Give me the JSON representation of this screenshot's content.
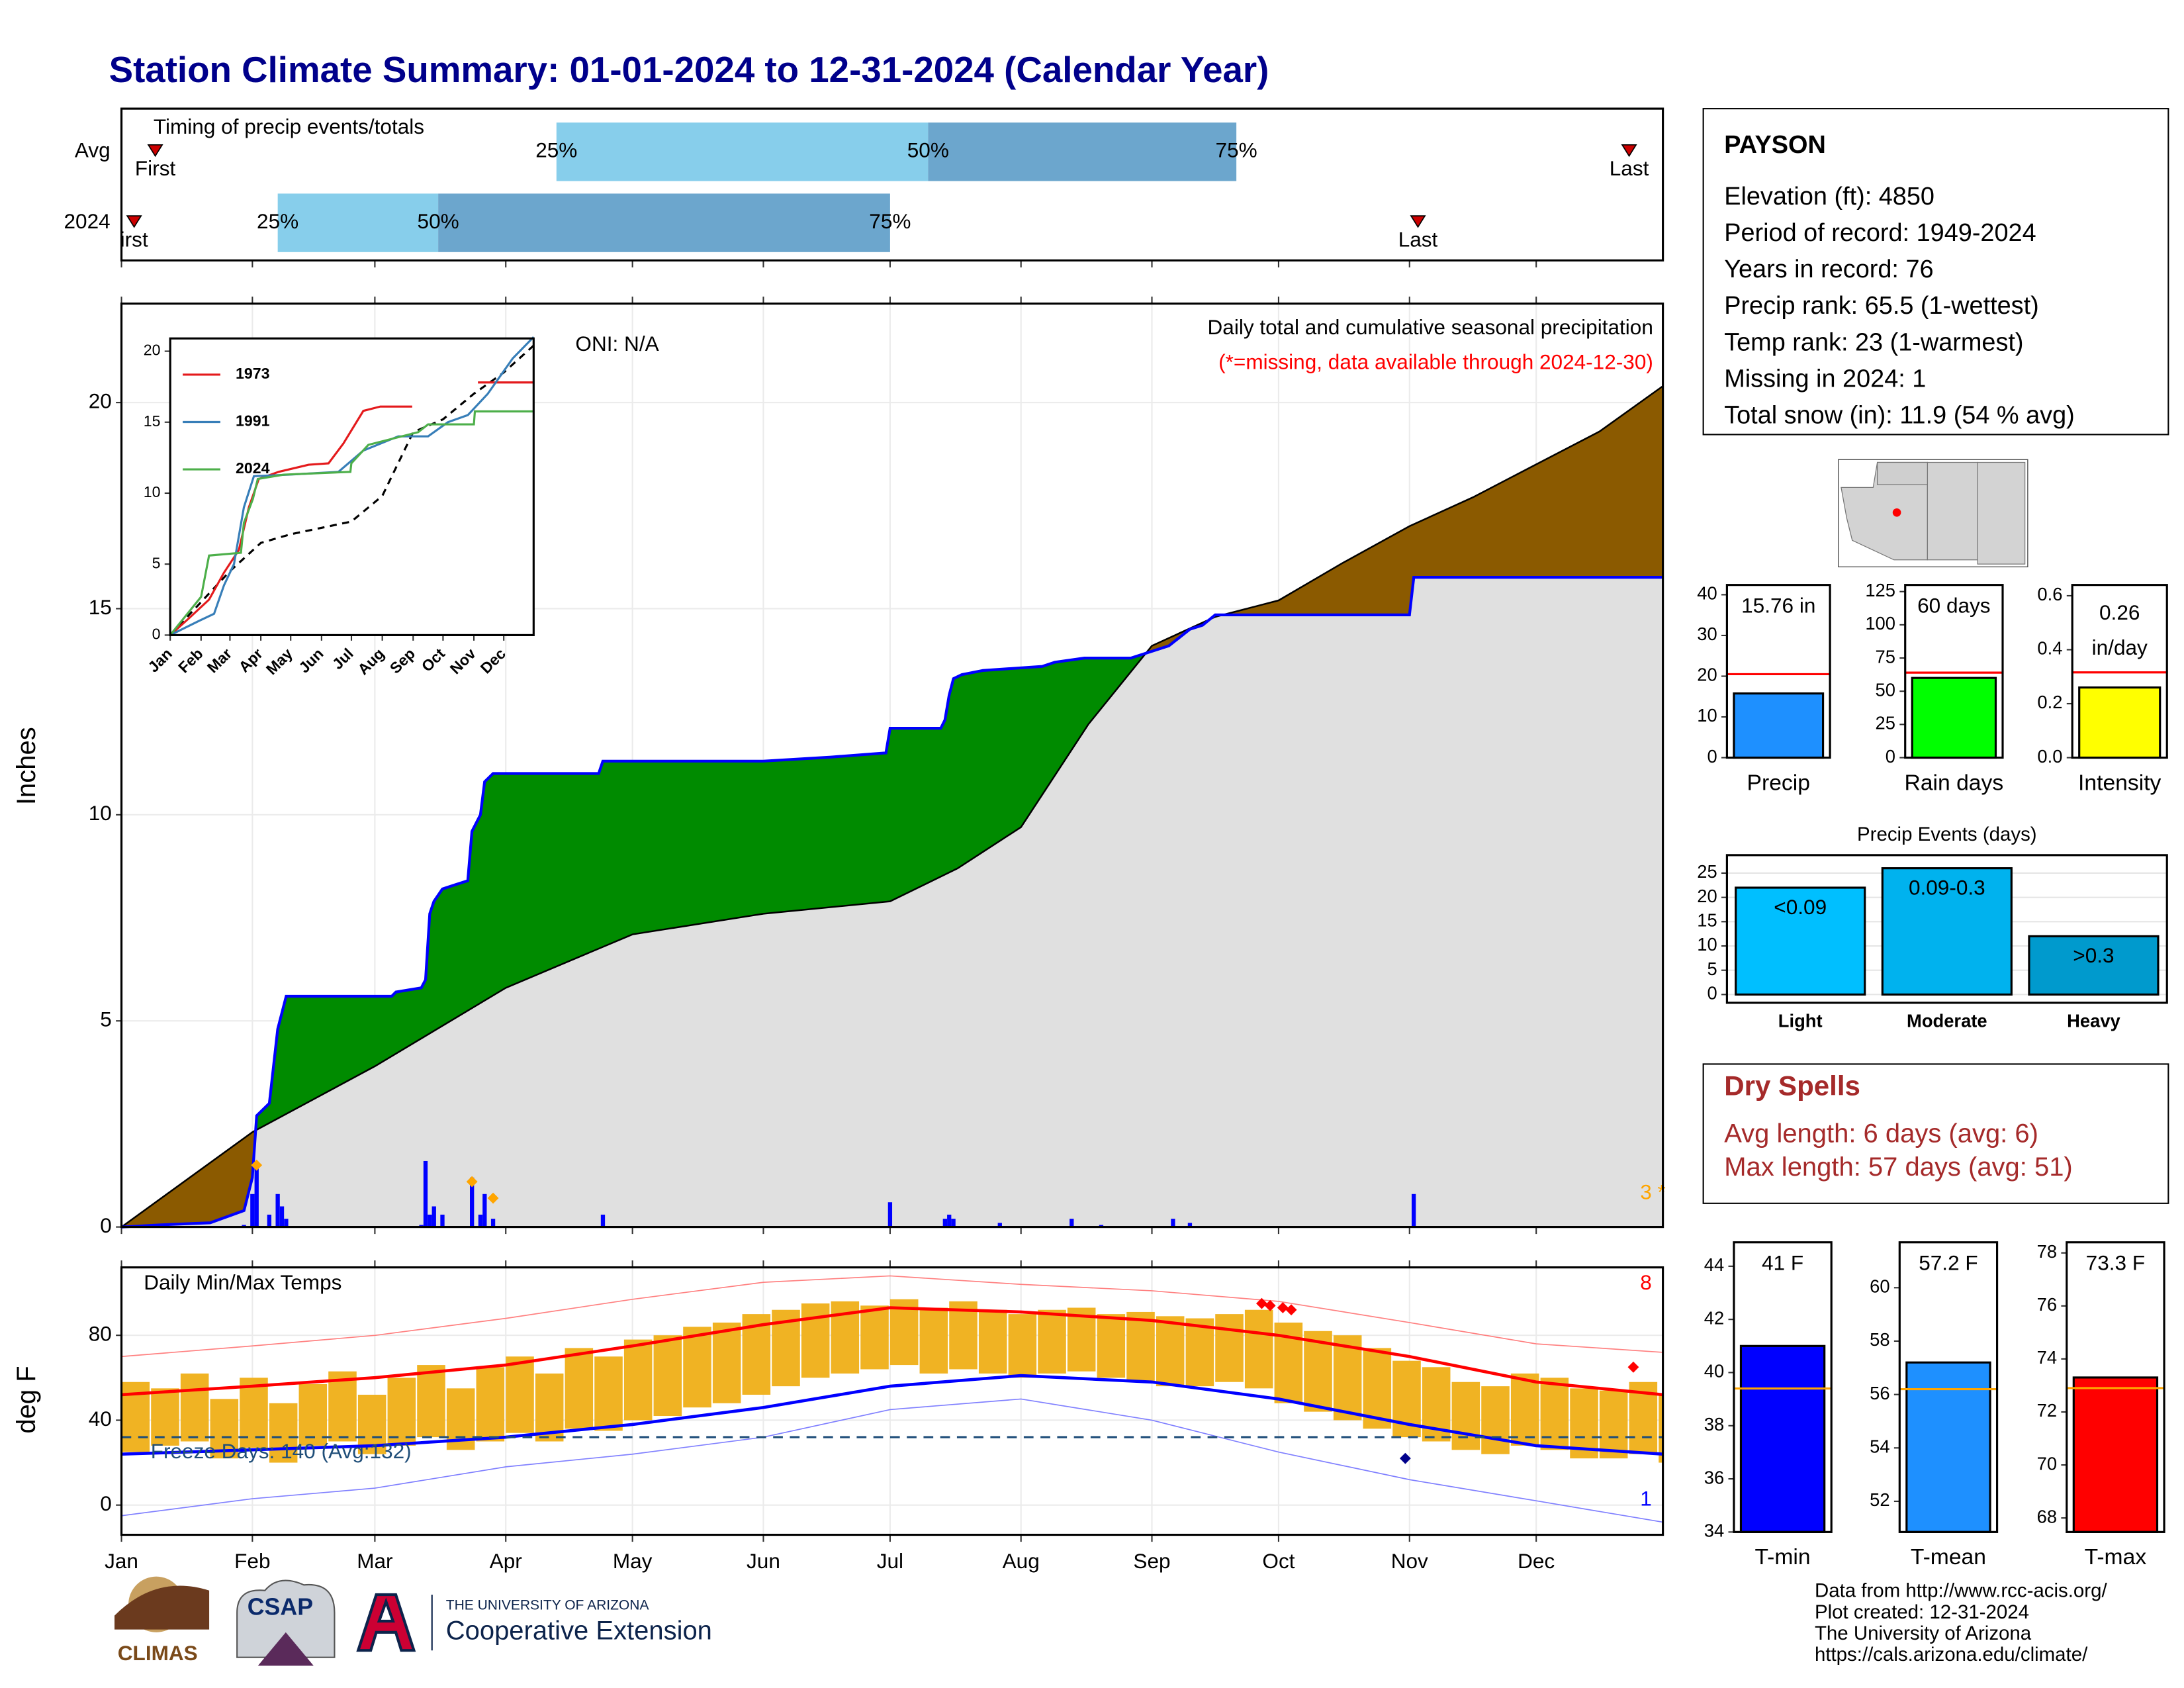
{
  "title": "Station Climate Summary: 01-01-2024 to 12-31-2024 (Calendar Year)",
  "station": {
    "name": "PAYSON",
    "lines": [
      "Elevation (ft): 4850",
      "Period of record: 1949-2024",
      "Years in record: 76",
      "Precip rank: 65.5 (1-wettest)",
      "Temp rank: 23 (1-warmest)",
      "Missing in 2024: 1",
      "Total snow (in): 11.9 (54 % avg)"
    ]
  },
  "dry_spells": {
    "title": "Dry Spells",
    "lines": [
      "Avg length: 6 days (avg: 6)",
      "Max length: 57 days (avg: 51)"
    ]
  },
  "footer": [
    "Data from http://www.rcc-acis.org/",
    "Plot created: 12-31-2024",
    "The University of Arizona",
    "https://cals.arizona.edu/climate/"
  ],
  "logos": {
    "climas": "CLIMAS",
    "csap": "CSAP",
    "university": "THE UNIVERSITY OF ARIZONA",
    "extension": "Cooperative Extension"
  },
  "chart_data": [
    {
      "type": "timeline",
      "label": "Timing of precip events/totals",
      "xlim": [
        1,
        366
      ],
      "xticks": [
        1,
        32,
        61,
        92,
        122,
        153,
        183,
        214,
        245,
        275,
        306,
        336
      ],
      "colors": [
        "#87ceeb",
        "#6ca6cd"
      ],
      "marker_color": "#cc0000",
      "series": [
        {
          "name": "Avg",
          "values": [
            9,
            104,
            192,
            265,
            358
          ],
          "labels": [
            "First",
            "25%",
            "50%",
            "75%",
            "Last"
          ]
        },
        {
          "name": "2024",
          "values": [
            4,
            38,
            76,
            183,
            308
          ],
          "labels": [
            "irst",
            "25%",
            "50%",
            "75%",
            "Last"
          ]
        }
      ]
    },
    {
      "type": "cumulative",
      "ylabel": "Inches",
      "xlim": [
        1,
        366
      ],
      "ylim": [
        0,
        22.4
      ],
      "yticks": [
        0,
        5,
        10,
        15,
        20
      ],
      "xticks": [
        1,
        32,
        61,
        92,
        122,
        153,
        183,
        214,
        245,
        275,
        306,
        336
      ],
      "grid": true,
      "oni": "ONI: N/A",
      "subtitle": "Daily total and cumulative seasonal precipitation",
      "note": "(*=missing, data available through 2024-12-30)",
      "missing": "3 *",
      "above_color": "#008b00",
      "below_color": "#8b5a00",
      "base_color": "#e0e0e0",
      "observed": {
        "color": "#0000ff",
        "x": [
          1,
          10,
          22,
          30,
          32,
          33,
          36,
          38,
          40,
          65,
          66,
          72,
          73,
          74,
          75,
          77,
          80,
          83,
          84,
          86,
          87,
          89,
          114,
          115,
          153,
          169,
          182,
          183,
          195,
          196,
          197,
          198,
          200,
          205,
          219,
          222,
          229,
          240,
          249,
          254,
          257,
          260,
          306,
          307,
          366
        ],
        "values": [
          0,
          0.05,
          0.1,
          0.4,
          1.2,
          2.7,
          3.0,
          4.8,
          5.6,
          5.6,
          5.7,
          5.8,
          6.0,
          7.6,
          7.9,
          8.2,
          8.3,
          8.4,
          9.6,
          10.0,
          10.8,
          11.0,
          11.0,
          11.3,
          11.3,
          11.4,
          11.5,
          12.1,
          12.1,
          12.3,
          12.9,
          13.3,
          13.4,
          13.5,
          13.6,
          13.7,
          13.8,
          13.8,
          14.1,
          14.5,
          14.6,
          14.85,
          14.85,
          15.76,
          15.76
        ]
      },
      "normal": {
        "color": "#000000",
        "x": [
          1,
          32,
          61,
          92,
          122,
          153,
          183,
          199,
          214,
          230,
          245,
          260,
          275,
          290,
          306,
          321,
          336,
          351,
          366
        ],
        "values": [
          0,
          2.3,
          3.9,
          5.8,
          7.1,
          7.6,
          7.9,
          8.7,
          9.7,
          12.2,
          14.1,
          14.8,
          15.2,
          16.1,
          17.0,
          17.7,
          18.5,
          19.3,
          20.4
        ]
      },
      "daily": {
        "color": "#0000ff",
        "x": [
          30,
          32,
          33,
          36,
          38,
          39,
          40,
          72,
          73,
          74,
          75,
          77,
          84,
          86,
          87,
          89,
          115,
          183,
          196,
          197,
          198,
          209,
          226,
          233,
          250,
          254,
          307
        ],
        "values": [
          0.05,
          0.8,
          1.5,
          0.3,
          0.8,
          0.5,
          0.2,
          0.05,
          1.6,
          0.3,
          0.5,
          0.3,
          1.2,
          0.3,
          0.8,
          0.2,
          0.3,
          0.6,
          0.2,
          0.3,
          0.2,
          0.1,
          0.2,
          0.05,
          0.2,
          0.1,
          0.8
        ]
      },
      "markers": {
        "color": "#ffa500",
        "x": [
          33,
          84,
          89
        ],
        "values": [
          1.5,
          1.1,
          0.7
        ]
      }
    },
    {
      "type": "line",
      "xlim": [
        1,
        366
      ],
      "ylim": [
        0,
        20.9
      ],
      "yticks": [
        0,
        5,
        10,
        15,
        20
      ],
      "xticks": [
        {
          "value": 1,
          "label": "Jan"
        },
        {
          "value": 32,
          "label": "Feb"
        },
        {
          "value": 61,
          "label": "Mar"
        },
        {
          "value": 92,
          "label": "Apr"
        },
        {
          "value": 122,
          "label": "May"
        },
        {
          "value": 153,
          "label": "Jun"
        },
        {
          "value": 183,
          "label": "Jul"
        },
        {
          "value": 214,
          "label": "Aug"
        },
        {
          "value": 245,
          "label": "Sep"
        },
        {
          "value": 275,
          "label": "Oct"
        },
        {
          "value": 306,
          "label": "Nov"
        },
        {
          "value": 336,
          "label": "Dec"
        }
      ],
      "series": [
        {
          "name": "1973",
          "color": "#e41a1c",
          "x": [
            1,
            20,
            40,
            55,
            70,
            80,
            90,
            110,
            140,
            160,
            175,
            195,
            212,
            244,
            250,
            310,
            366
          ],
          "values": [
            0,
            1.2,
            2.5,
            4.4,
            6.0,
            9.0,
            11.0,
            11.5,
            12.0,
            12.1,
            13.5,
            15.8,
            16.1,
            16.1,
            null,
            17.8,
            17.8
          ]
        },
        {
          "name": "1991",
          "color": "#377eb8",
          "x": [
            1,
            30,
            45,
            55,
            65,
            75,
            85,
            120,
            170,
            195,
            230,
            260,
            280,
            300,
            320,
            345,
            366
          ],
          "values": [
            0,
            1.0,
            1.5,
            3.5,
            5.0,
            9.0,
            11.2,
            11.3,
            11.5,
            13.0,
            14.0,
            14.0,
            15.0,
            15.5,
            17.0,
            19.5,
            21.0
          ]
        },
        {
          "name": "2024",
          "color": "#4daf4a",
          "x": [
            1,
            32,
            40,
            72,
            75,
            84,
            89,
            115,
            182,
            183,
            200,
            250,
            260,
            306,
            307,
            366
          ],
          "values": [
            0,
            2.7,
            5.6,
            5.8,
            7.9,
            9.6,
            11.0,
            11.3,
            11.5,
            12.1,
            13.4,
            14.3,
            14.85,
            14.85,
            15.76,
            15.76
          ]
        }
      ],
      "normal": {
        "color": "#000000",
        "x": [
          1,
          61,
          92,
          122,
          183,
          214,
          245,
          275,
          306,
          336,
          366
        ],
        "values": [
          0,
          4.5,
          6.5,
          7.1,
          8.0,
          9.8,
          14.3,
          15.2,
          17.0,
          18.5,
          20.4
        ]
      }
    },
    {
      "type": "range_bar",
      "ylabel": "deg F",
      "label": "Daily Min/Max Temps",
      "freeze_label": "Freeze Days: 140 (Avg:132)",
      "count_high": "8",
      "count_low": "1",
      "xlim": [
        1,
        366
      ],
      "ylim": [
        -14,
        112
      ],
      "yticks": [
        0,
        40,
        80
      ],
      "grid": true,
      "xticks": [
        {
          "value": 1,
          "label": "Jan"
        },
        {
          "value": 32,
          "label": "Feb"
        },
        {
          "value": 61,
          "label": "Mar"
        },
        {
          "value": 92,
          "label": "Apr"
        },
        {
          "value": 122,
          "label": "May"
        },
        {
          "value": 153,
          "label": "Jun"
        },
        {
          "value": 183,
          "label": "Jul"
        },
        {
          "value": 214,
          "label": "Aug"
        },
        {
          "value": 245,
          "label": "Sep"
        },
        {
          "value": 275,
          "label": "Oct"
        },
        {
          "value": 306,
          "label": "Nov"
        },
        {
          "value": 336,
          "label": "Dec"
        }
      ],
      "x": [
        1,
        32,
        61,
        92,
        122,
        153,
        183,
        214,
        245,
        275,
        306,
        336,
        366
      ],
      "normal_high": {
        "color": "#ff0000",
        "values": [
          52,
          56,
          60,
          66,
          75,
          85,
          93,
          91,
          87,
          80,
          70,
          58,
          52
        ]
      },
      "normal_low": {
        "color": "#0000ff",
        "values": [
          24,
          26,
          28,
          32,
          38,
          46,
          56,
          61,
          58,
          50,
          38,
          28,
          24
        ]
      },
      "record_high": {
        "color": "#ff8080",
        "values": [
          70,
          75,
          80,
          88,
          97,
          105,
          108,
          104,
          101,
          96,
          86,
          76,
          72
        ]
      },
      "record_low": {
        "color": "#8080ff",
        "values": [
          -5,
          3,
          8,
          18,
          24,
          32,
          45,
          50,
          40,
          25,
          12,
          2,
          -8
        ]
      },
      "bars": {
        "color": "#f0b323",
        "x": [
          1,
          8,
          15,
          22,
          29,
          36,
          43,
          50,
          57,
          64,
          71,
          78,
          85,
          92,
          99,
          106,
          113,
          120,
          127,
          134,
          141,
          148,
          155,
          162,
          169,
          176,
          183,
          190,
          197,
          204,
          211,
          218,
          225,
          232,
          239,
          246,
          253,
          260,
          267,
          274,
          281,
          288,
          295,
          302,
          309,
          316,
          323,
          330,
          337,
          344,
          351,
          358,
          365
        ],
        "high": [
          58,
          55,
          62,
          50,
          60,
          48,
          57,
          63,
          52,
          60,
          66,
          55,
          65,
          70,
          62,
          74,
          70,
          78,
          80,
          84,
          86,
          90,
          92,
          95,
          96,
          94,
          97,
          93,
          96,
          92,
          90,
          92,
          93,
          90,
          91,
          89,
          88,
          90,
          92,
          86,
          82,
          80,
          74,
          68,
          65,
          58,
          56,
          62,
          60,
          55,
          54,
          58,
          52
        ],
        "low": [
          25,
          28,
          30,
          22,
          27,
          20,
          28,
          30,
          24,
          28,
          32,
          26,
          30,
          34,
          30,
          36,
          35,
          40,
          42,
          46,
          48,
          52,
          56,
          60,
          62,
          64,
          66,
          62,
          64,
          62,
          60,
          62,
          63,
          60,
          58,
          56,
          56,
          58,
          55,
          48,
          44,
          40,
          36,
          32,
          30,
          26,
          24,
          28,
          26,
          22,
          22,
          24,
          20
        ]
      },
      "freeze": {
        "value": 32,
        "color": "#1f4e79"
      },
      "record_markers": {
        "color": "#ff0000",
        "x": [
          271,
          273,
          276,
          278,
          359
        ],
        "values": [
          95,
          94,
          93,
          92,
          65
        ]
      },
      "low_markers": {
        "color": "#00008b",
        "x": [
          305
        ],
        "values": [
          22
        ]
      }
    },
    {
      "type": "bar",
      "value": 15.76,
      "value_label": "15.76 in",
      "average": 20.5,
      "color": "#1e90ff",
      "avg_color": "#ff0000",
      "xlabel": "Precip",
      "ylim": [
        0,
        42.4
      ],
      "yticks": [
        0,
        10,
        20,
        30,
        40
      ]
    },
    {
      "type": "bar",
      "value": 60,
      "value_label": "60 days",
      "average": 64,
      "color": "#00ff00",
      "avg_color": "#ff0000",
      "xlabel": "Rain days",
      "ylim": [
        0,
        130
      ],
      "yticks": [
        0,
        25,
        50,
        75,
        100,
        125
      ]
    },
    {
      "type": "bar",
      "value": 0.26,
      "value_label": "0.26",
      "unit": "in/day",
      "average": 0.316,
      "color": "#ffff00",
      "avg_color": "#ff0000",
      "xlabel": "Intensity",
      "ylim": [
        0,
        0.64
      ],
      "yticks": [
        {
          "value": 0,
          "label": "0.0"
        },
        {
          "value": 0.2,
          "label": "0.2"
        },
        {
          "value": 0.4,
          "label": "0.4"
        },
        {
          "value": 0.6,
          "label": "0.6"
        }
      ]
    },
    {
      "type": "column",
      "title": "Precip Events (days)",
      "categories": [
        "Light",
        "Moderate",
        "Heavy"
      ],
      "values": [
        22,
        26,
        12
      ],
      "value_labels": [
        "<0.09",
        "0.09-0.3",
        ">0.3"
      ],
      "colors": [
        "#00bfff",
        "#00b2ee",
        "#009acd"
      ],
      "ylim": [
        -1.7,
        28.7
      ],
      "yticks": [
        0,
        5,
        10,
        15,
        20,
        25
      ],
      "grid": true
    },
    {
      "type": "bar",
      "value": 41,
      "value_label": "41 F",
      "average": 39.4,
      "color": "#0000ff",
      "avg_color": "#ffa500",
      "xlabel": "T-min",
      "ylim": [
        34,
        44.9
      ],
      "yticks": [
        34,
        36,
        38,
        40,
        42,
        44
      ]
    },
    {
      "type": "bar",
      "value": 57.2,
      "value_label": "57.2 F",
      "average": 56.2,
      "color": "#1e90ff",
      "avg_color": "#ffa500",
      "xlabel": "T-mean",
      "ylim": [
        50.85,
        61.7
      ],
      "yticks": [
        52,
        54,
        56,
        58,
        60
      ]
    },
    {
      "type": "bar",
      "value": 73.3,
      "value_label": "73.3 F",
      "average": 72.9,
      "color": "#ff0000",
      "avg_color": "#ffa500",
      "xlabel": "T-max",
      "ylim": [
        67.47,
        78.4
      ],
      "yticks": [
        68,
        70,
        72,
        74,
        76,
        78
      ]
    }
  ]
}
